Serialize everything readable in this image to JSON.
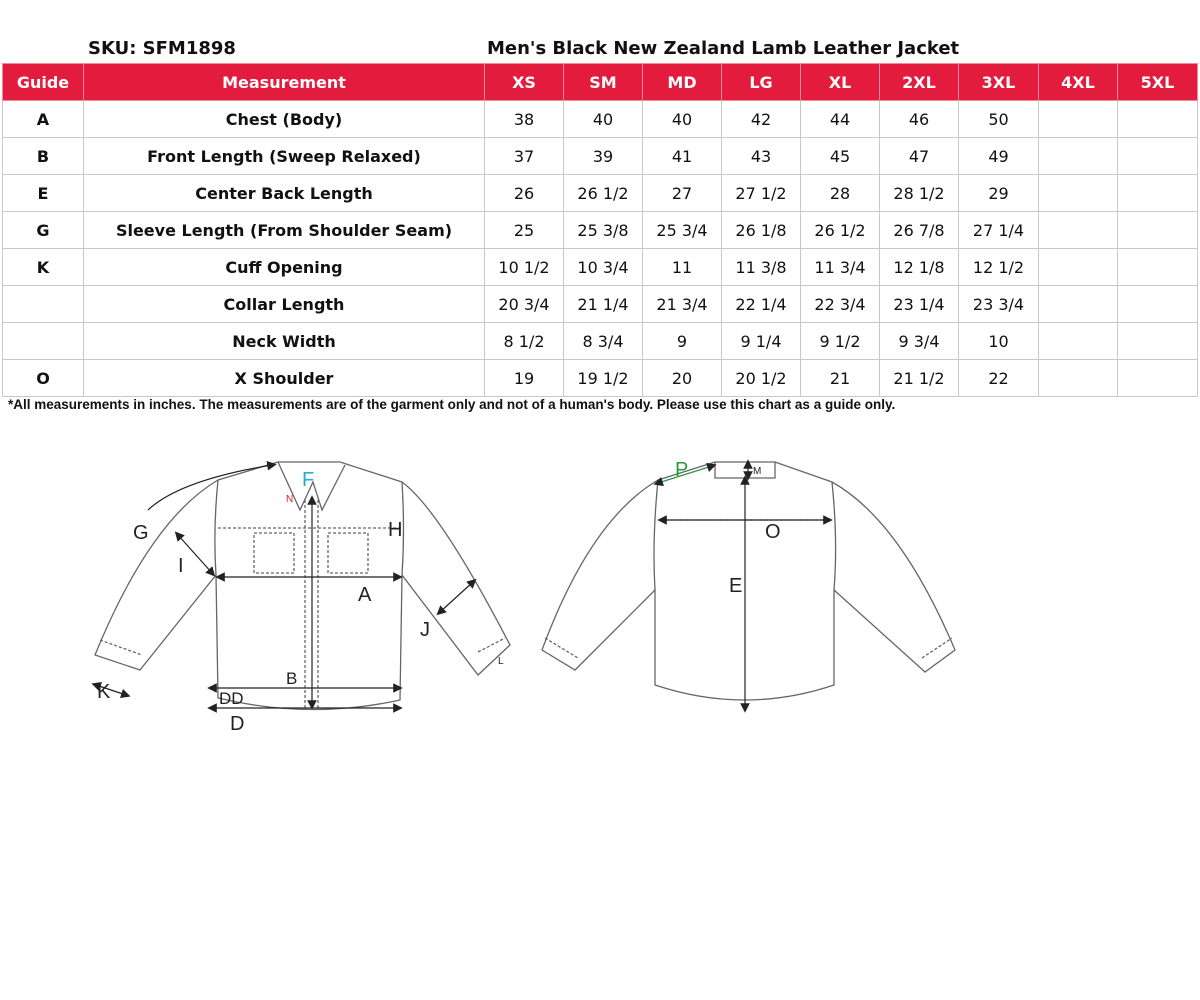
{
  "sku": "SKU: SFM1898",
  "title": "Men's Black New Zealand Lamb Leather Jacket",
  "colors": {
    "header_bg": "#e31b3c",
    "header_text": "#ffffff",
    "grid": "#c8c8c8"
  },
  "table": {
    "headers": [
      "Guide",
      "Measurement",
      "XS",
      "SM",
      "MD",
      "LG",
      "XL",
      "2XL",
      "3XL",
      "4XL",
      "5XL"
    ],
    "rows": [
      {
        "guide": "A",
        "measurement": "Chest (Body)",
        "values": [
          "38",
          "40",
          "40",
          "42",
          "44",
          "46",
          "50",
          "",
          ""
        ]
      },
      {
        "guide": "B",
        "measurement": "Front Length (Sweep Relaxed)",
        "values": [
          "37",
          "39",
          "41",
          "43",
          "45",
          "47",
          "49",
          "",
          ""
        ]
      },
      {
        "guide": "E",
        "measurement": "Center Back Length",
        "values": [
          "26",
          "26 1/2",
          "27",
          "27 1/2",
          "28",
          "28 1/2",
          "29",
          "",
          ""
        ]
      },
      {
        "guide": "G",
        "measurement": "Sleeve Length (From Shoulder Seam)",
        "values": [
          "25",
          "25 3/8",
          "25 3/4",
          "26 1/8",
          "26 1/2",
          "26 7/8",
          "27 1/4",
          "",
          ""
        ]
      },
      {
        "guide": "K",
        "measurement": "Cuff Opening",
        "values": [
          "10 1/2",
          "10 3/4",
          "11",
          "11 3/8",
          "11 3/4",
          "12 1/8",
          "12 1/2",
          "",
          ""
        ]
      },
      {
        "guide": "",
        "measurement": "Collar Length",
        "values": [
          "20 3/4",
          "21 1/4",
          "21 3/4",
          "22 1/4",
          "22 3/4",
          "23 1/4",
          "23 3/4",
          "",
          ""
        ]
      },
      {
        "guide": "",
        "measurement": "Neck Width",
        "values": [
          "8 1/2",
          "8 3/4",
          "9",
          "9 1/4",
          "9 1/2",
          "9 3/4",
          "10",
          "",
          ""
        ]
      },
      {
        "guide": "O",
        "measurement": "X Shoulder",
        "values": [
          "19",
          "19 1/2",
          "20",
          "20 1/2",
          "21",
          "21 1/2",
          "22",
          "",
          ""
        ]
      }
    ]
  },
  "note": "*All measurements in inches. The measurements are of the garment only and not of a human's body. Please use this chart as a guide only.",
  "diagram": {
    "front_labels": {
      "G": "G",
      "I": "I",
      "F": "F",
      "N": "N",
      "H": "H",
      "A": "A",
      "J": "J",
      "K": "K",
      "B": "B",
      "DD": "DD",
      "D": "D",
      "L": "L"
    },
    "back_labels": {
      "P": "P",
      "M": "M",
      "O": "O",
      "E": "E"
    }
  }
}
